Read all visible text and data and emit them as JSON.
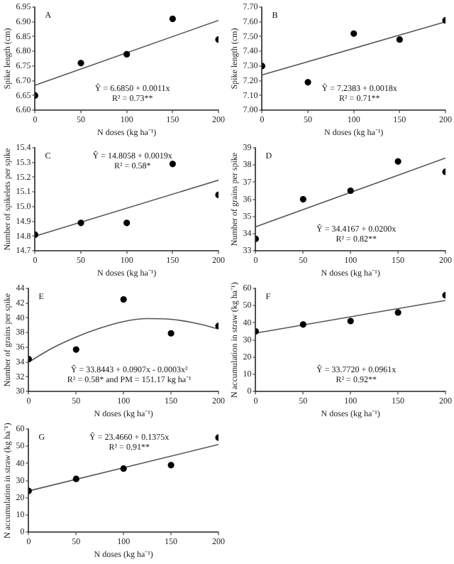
{
  "chart_data": [
    {
      "type": "scatter",
      "xlabel": "N doses (kg ha⁻¹)",
      "ylabel": "Spike length (cm)",
      "xlim": [
        0,
        200
      ],
      "xticks": [
        0,
        50,
        100,
        150,
        200
      ],
      "ylim": [
        6.6,
        6.95
      ],
      "yticks": [
        {
          "value": 6.6,
          "label": "6.60"
        },
        6.65,
        {
          "value": 6.7,
          "label": "6.70"
        },
        6.75,
        {
          "value": 6.8,
          "label": "6.80"
        },
        6.85,
        {
          "value": 6.9,
          "label": "6.90"
        },
        6.95
      ],
      "grid": false,
      "legend": false,
      "annotations": [
        "A",
        "Ŷ = 6.6850 + 0.0011x",
        "R² = 0.73**"
      ],
      "series": [
        {
          "marker": "circle",
          "color": "#000000",
          "x": [
            0,
            50,
            100,
            150,
            200
          ],
          "values": [
            6.65,
            6.76,
            6.79,
            6.91,
            6.84
          ]
        },
        {
          "type": "line",
          "color": "#555555",
          "x": [
            0,
            200
          ],
          "values": [
            6.685,
            6.905
          ]
        }
      ]
    },
    {
      "type": "scatter",
      "xlabel": "N doses (kg ha⁻¹)",
      "ylabel": "Spike length (cm)",
      "xlim": [
        0,
        200
      ],
      "xticks": [
        0,
        50,
        100,
        150,
        200
      ],
      "ylim": [
        7.0,
        7.7
      ],
      "yticks": [
        {
          "value": 7.0,
          "label": "7.00"
        },
        {
          "value": 7.1,
          "label": "7.10"
        },
        {
          "value": 7.2,
          "label": "7.20"
        },
        {
          "value": 7.3,
          "label": "7.30"
        },
        {
          "value": 7.4,
          "label": "7.40"
        },
        {
          "value": 7.5,
          "label": "7.50"
        },
        {
          "value": 7.6,
          "label": "7.60"
        },
        {
          "value": 7.7,
          "label": "7.70"
        }
      ],
      "grid": false,
      "legend": false,
      "annotations": [
        "B",
        "Ŷ = 7.2383 + 0.0018x",
        "R² = 0.71**"
      ],
      "series": [
        {
          "marker": "circle",
          "color": "#000000",
          "x": [
            0,
            50,
            100,
            150,
            200
          ],
          "values": [
            7.3,
            7.19,
            7.52,
            7.48,
            7.61
          ]
        },
        {
          "type": "line",
          "color": "#555555",
          "x": [
            0,
            200
          ],
          "values": [
            7.24,
            7.6
          ]
        }
      ]
    },
    {
      "type": "scatter",
      "xlabel": "N doses (kg ha⁻¹)",
      "ylabel": "Number of spikelets per spike",
      "xlim": [
        0,
        200
      ],
      "xticks": [
        0,
        50,
        100,
        150,
        200
      ],
      "ylim": [
        14.7,
        15.4
      ],
      "yticks": [
        14.7,
        14.8,
        14.9,
        {
          "value": 15.0,
          "label": "15.0"
        },
        15.1,
        15.2,
        15.3,
        15.4
      ],
      "grid": false,
      "legend": false,
      "annotations": [
        "C",
        "Ŷ = 14.8058 + 0.0019x",
        "R² = 0.58*"
      ],
      "series": [
        {
          "marker": "circle",
          "color": "#000000",
          "x": [
            0,
            50,
            100,
            150,
            200
          ],
          "values": [
            14.81,
            14.89,
            14.89,
            15.29,
            15.08
          ]
        },
        {
          "type": "line",
          "color": "#555555",
          "x": [
            0,
            200
          ],
          "values": [
            14.8,
            15.18
          ]
        }
      ]
    },
    {
      "type": "scatter",
      "xlabel": "N doses (kg ha⁻¹)",
      "ylabel": "Number of grains per spike",
      "xlim": [
        0,
        200
      ],
      "xticks": [
        0,
        50,
        100,
        150,
        200
      ],
      "ylim": [
        33,
        39
      ],
      "yticks": [
        33,
        34,
        35,
        36,
        37,
        38,
        39
      ],
      "grid": false,
      "legend": false,
      "annotations": [
        "D",
        "Ŷ = 34.4167 + 0.0200x",
        "R² = 0.82**"
      ],
      "series": [
        {
          "marker": "circle",
          "color": "#000000",
          "x": [
            0,
            50,
            100,
            150,
            200
          ],
          "values": [
            33.7,
            36.0,
            36.5,
            38.2,
            37.6
          ]
        },
        {
          "type": "line",
          "color": "#555555",
          "x": [
            0,
            200
          ],
          "values": [
            34.4,
            38.4
          ]
        }
      ]
    },
    {
      "type": "scatter",
      "xlabel": "N doses (kg ha⁻¹)",
      "ylabel": "Number of grains per spike",
      "xlim": [
        0,
        200
      ],
      "xticks": [
        0,
        50,
        100,
        150,
        200
      ],
      "ylim": [
        30,
        44
      ],
      "yticks": [
        30,
        32,
        34,
        36,
        38,
        40,
        42,
        44
      ],
      "grid": false,
      "legend": false,
      "annotations": [
        "E",
        "Ŷ = 33.8443 + 0.0907x - 0.0003x²",
        "R² = 0.58* and PM = 151.17 kg ha⁻¹"
      ],
      "series": [
        {
          "marker": "circle",
          "color": "#000000",
          "x": [
            0,
            50,
            100,
            150,
            200
          ],
          "values": [
            34.4,
            35.7,
            42.5,
            37.9,
            38.9
          ]
        },
        {
          "type": "line",
          "color": "#555555",
          "x": [
            0,
            25,
            50,
            75,
            100,
            125,
            150,
            175,
            200
          ],
          "values": [
            34.0,
            35.9,
            37.4,
            38.6,
            39.5,
            39.9,
            39.8,
            39.3,
            38.5
          ]
        }
      ]
    },
    {
      "type": "scatter",
      "xlabel": "N doses (kg ha⁻¹)",
      "ylabel": "N accumulation in straw (kg ha⁻¹)",
      "xlim": [
        0,
        200
      ],
      "xticks": [
        0,
        50,
        100,
        150,
        200
      ],
      "ylim": [
        0,
        60
      ],
      "yticks": [
        0,
        10,
        20,
        30,
        40,
        50,
        60
      ],
      "grid": false,
      "legend": false,
      "annotations": [
        "F",
        "Ŷ = 33.7720 + 0.0961x",
        "R² = 0.92**"
      ],
      "series": [
        {
          "marker": "circle",
          "color": "#000000",
          "x": [
            0,
            50,
            100,
            150,
            200
          ],
          "values": [
            35,
            39,
            41,
            46,
            56
          ]
        },
        {
          "type": "line",
          "color": "#555555",
          "x": [
            0,
            200
          ],
          "values": [
            34,
            53
          ]
        }
      ]
    },
    {
      "type": "scatter",
      "xlabel": "N doses (kg ha⁻¹)",
      "ylabel": "N accumulation in straw (kg ha⁻¹)",
      "xlim": [
        0,
        200
      ],
      "xticks": [
        0,
        50,
        100,
        150,
        200
      ],
      "ylim": [
        0,
        60
      ],
      "yticks": [
        0,
        10,
        20,
        30,
        40,
        50,
        60
      ],
      "grid": false,
      "legend": false,
      "annotations": [
        "G",
        "Ŷ = 23.4660 + 0.1375x",
        "R² = 0.91**"
      ],
      "series": [
        {
          "marker": "circle",
          "color": "#000000",
          "x": [
            0,
            50,
            100,
            150,
            200
          ],
          "values": [
            24,
            31,
            37,
            39,
            55
          ]
        },
        {
          "type": "line",
          "color": "#555555",
          "x": [
            0,
            200
          ],
          "values": [
            24,
            51
          ]
        }
      ]
    }
  ]
}
